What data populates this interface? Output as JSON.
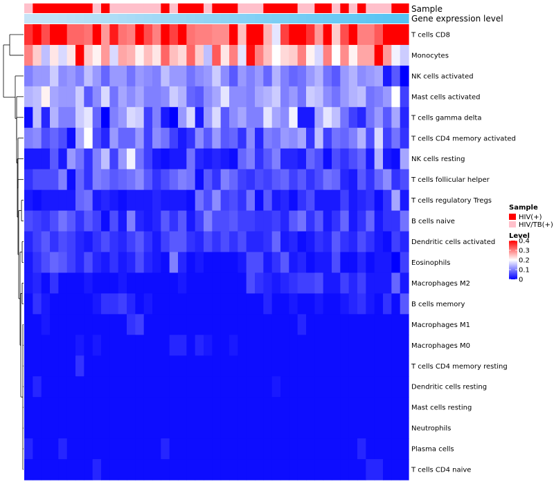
{
  "chart_data": {
    "type": "heatmap",
    "title": "",
    "rows": [
      "T cells CD8",
      "Monocytes",
      "NK cells activated",
      "Mast cells activated",
      "T cells gamma delta",
      "T cells CD4 memory activated",
      "NK cells resting",
      "T cells follicular helper",
      "T cells regulatory  Tregs",
      "B cells naive",
      "Dendritic cells activated",
      "Eosinophils",
      "Macrophages M2",
      "B cells memory",
      "Macrophages M1",
      "Macrophages M0",
      "T cells CD4 memory resting",
      "Dendritic cells resting",
      "Mast cells resting",
      "Neutrophils",
      "Plasma cells",
      "T cells CD4 naive"
    ],
    "columns": 45,
    "sample_groups": [
      1,
      0,
      0,
      0,
      0,
      0,
      0,
      0,
      1,
      0,
      1,
      1,
      1,
      1,
      1,
      1,
      0,
      1,
      0,
      0,
      0,
      1,
      0,
      0,
      0,
      1,
      1,
      1,
      0,
      0,
      0,
      0,
      1,
      1,
      0,
      0,
      1,
      0,
      1,
      0,
      1,
      1,
      1,
      0,
      0
    ],
    "values": [
      [
        0.36,
        0.4,
        0.34,
        0.4,
        0.4,
        0.32,
        0.32,
        0.31,
        0.4,
        0.28,
        0.38,
        0.31,
        0.3,
        0.4,
        0.34,
        0.3,
        0.4,
        0.35,
        0.4,
        0.31,
        0.3,
        0.3,
        0.29,
        0.29,
        0.4,
        0.25,
        0.4,
        0.4,
        0.26,
        0.18,
        0.35,
        0.4,
        0.4,
        0.36,
        0.28,
        0.4,
        0.24,
        0.34,
        0.4,
        0.3,
        0.3,
        0.33,
        0.4,
        0.4,
        0.4
      ],
      [
        0.3,
        0.24,
        0.15,
        0.22,
        0.17,
        0.22,
        0.4,
        0.24,
        0.21,
        0.28,
        0.17,
        0.27,
        0.26,
        0.21,
        0.25,
        0.22,
        0.32,
        0.25,
        0.23,
        0.32,
        0.24,
        0.15,
        0.33,
        0.22,
        0.3,
        0.18,
        0.39,
        0.3,
        0.25,
        0.2,
        0.23,
        0.24,
        0.3,
        0.21,
        0.17,
        0.3,
        0.2,
        0.29,
        0.21,
        0.27,
        0.27,
        0.4,
        0.28,
        0.19,
        0.16
      ],
      [
        0.1,
        0.12,
        0.12,
        0.16,
        0.11,
        0.12,
        0.1,
        0.15,
        0.12,
        0.08,
        0.12,
        0.12,
        0.09,
        0.12,
        0.11,
        0.1,
        0.15,
        0.12,
        0.12,
        0.09,
        0.11,
        0.12,
        0.16,
        0.11,
        0.07,
        0.12,
        0.1,
        0.12,
        0.08,
        0.14,
        0.1,
        0.08,
        0.09,
        0.12,
        0.14,
        0.09,
        0.07,
        0.12,
        0.14,
        0.11,
        0.12,
        0.13,
        0.02,
        0.07,
        0.0
      ],
      [
        0.14,
        0.15,
        0.21,
        0.13,
        0.12,
        0.12,
        0.16,
        0.07,
        0.11,
        0.17,
        0.09,
        0.13,
        0.11,
        0.13,
        0.1,
        0.1,
        0.11,
        0.16,
        0.14,
        0.08,
        0.07,
        0.11,
        0.13,
        0.18,
        0.11,
        0.11,
        0.1,
        0.13,
        0.14,
        0.16,
        0.1,
        0.12,
        0.09,
        0.16,
        0.15,
        0.11,
        0.09,
        0.12,
        0.14,
        0.15,
        0.09,
        0.1,
        0.12,
        0.2,
        0.05
      ],
      [
        0.01,
        0.15,
        0.03,
        0.14,
        0.1,
        0.1,
        0.16,
        0.18,
        0.08,
        0.0,
        0.1,
        0.12,
        0.17,
        0.16,
        0.05,
        0.1,
        0.02,
        0.0,
        0.12,
        0.17,
        0.02,
        0.12,
        0.17,
        0.07,
        0.11,
        0.13,
        0.1,
        0.1,
        0.18,
        0.13,
        0.11,
        0.19,
        0.02,
        0.02,
        0.13,
        0.18,
        0.15,
        0.09,
        0.05,
        0.03,
        0.09,
        0.12,
        0.07,
        0.13,
        0.03
      ],
      [
        0.1,
        0.11,
        0.06,
        0.08,
        0.06,
        0.01,
        0.13,
        0.2,
        0.06,
        0.03,
        0.12,
        0.08,
        0.08,
        0.12,
        0.05,
        0.11,
        0.09,
        0.05,
        0.02,
        0.04,
        0.11,
        0.07,
        0.12,
        0.07,
        0.08,
        0.04,
        0.11,
        0.03,
        0.1,
        0.09,
        0.12,
        0.11,
        0.13,
        0.04,
        0.15,
        0.05,
        0.09,
        0.08,
        0.1,
        0.14,
        0.06,
        0.17,
        0.05,
        0.09,
        0.04
      ],
      [
        0.02,
        0.02,
        0.02,
        0.07,
        0.02,
        0.12,
        0.09,
        0.04,
        0.1,
        0.15,
        0.05,
        0.12,
        0.19,
        0.09,
        0.05,
        0.02,
        0.01,
        0.02,
        0.02,
        0.09,
        0.03,
        0.02,
        0.03,
        0.02,
        0.01,
        0.08,
        0.1,
        0.04,
        0.07,
        0.1,
        0.03,
        0.03,
        0.02,
        0.08,
        0.06,
        0.01,
        0.06,
        0.04,
        0.06,
        0.08,
        0.02,
        0.14,
        0.02,
        0.01,
        0.13
      ],
      [
        0.04,
        0.06,
        0.06,
        0.06,
        0.1,
        0.01,
        0.08,
        0.04,
        0.1,
        0.09,
        0.07,
        0.08,
        0.09,
        0.11,
        0.07,
        0.04,
        0.06,
        0.08,
        0.1,
        0.09,
        0.01,
        0.07,
        0.04,
        0.1,
        0.08,
        0.05,
        0.04,
        0.06,
        0.05,
        0.07,
        0.08,
        0.05,
        0.07,
        0.04,
        0.06,
        0.09,
        0.08,
        0.03,
        0.02,
        0.07,
        0.04,
        0.08,
        0.11,
        0.04,
        0.06
      ],
      [
        0.02,
        0.01,
        0.02,
        0.02,
        0.02,
        0.02,
        0.08,
        0.09,
        0.02,
        0.03,
        0.02,
        0.01,
        0.02,
        0.02,
        0.02,
        0.03,
        0.02,
        0.02,
        0.02,
        0.01,
        0.09,
        0.06,
        0.11,
        0.05,
        0.06,
        0.04,
        0.09,
        0.01,
        0.07,
        0.02,
        0.03,
        0.01,
        0.04,
        0.06,
        0.02,
        0.02,
        0.02,
        0.05,
        0.02,
        0.03,
        0.04,
        0.01,
        0.04,
        0.13,
        0.02
      ],
      [
        0.06,
        0.05,
        0.04,
        0.06,
        0.09,
        0.07,
        0.04,
        0.07,
        0.05,
        0.01,
        0.06,
        0.02,
        0.1,
        0.03,
        0.02,
        0.03,
        0.07,
        0.04,
        0.07,
        0.02,
        0.05,
        0.1,
        0.06,
        0.06,
        0.07,
        0.05,
        0.05,
        0.04,
        0.04,
        0.05,
        0.03,
        0.07,
        0.09,
        0.04,
        0.07,
        0.02,
        0.04,
        0.08,
        0.02,
        0.04,
        0.08,
        0.02,
        0.04,
        0.04,
        0.09
      ],
      [
        0.03,
        0.05,
        0.07,
        0.04,
        0.06,
        0.05,
        0.03,
        0.02,
        0.04,
        0.06,
        0.04,
        0.03,
        0.05,
        0.07,
        0.04,
        0.02,
        0.05,
        0.07,
        0.07,
        0.04,
        0.03,
        0.06,
        0.04,
        0.06,
        0.04,
        0.06,
        0.03,
        0.03,
        0.04,
        0.08,
        0.02,
        0.03,
        0.01,
        0.02,
        0.04,
        0.03,
        0.07,
        0.04,
        0.03,
        0.06,
        0.04,
        0.02,
        0.01,
        0.05,
        0.03
      ],
      [
        0.02,
        0.04,
        0.06,
        0.08,
        0.07,
        0.05,
        0.03,
        0.06,
        0.03,
        0.02,
        0.04,
        0.02,
        0.03,
        0.06,
        0.03,
        0.02,
        0.01,
        0.1,
        0.03,
        0.01,
        0.02,
        0.01,
        0.01,
        0.01,
        0.01,
        0.02,
        0.06,
        0.06,
        0.02,
        0.04,
        0.07,
        0.02,
        0.03,
        0.01,
        0.02,
        0.02,
        0.06,
        0.01,
        0.01,
        0.03,
        0.01,
        0.02,
        0.02,
        0.0,
        0.05
      ],
      [
        0.02,
        0.03,
        0.01,
        0.04,
        0.01,
        0.01,
        0.01,
        0.02,
        0.01,
        0.01,
        0.01,
        0.02,
        0.01,
        0.01,
        0.01,
        0.01,
        0.01,
        0.01,
        0.02,
        0.01,
        0.01,
        0.01,
        0.01,
        0.01,
        0.01,
        0.01,
        0.06,
        0.04,
        0.03,
        0.02,
        0.03,
        0.04,
        0.05,
        0.05,
        0.06,
        0.02,
        0.02,
        0.05,
        0.03,
        0.05,
        0.02,
        0.02,
        0.02,
        0.08,
        0.02
      ],
      [
        0.01,
        0.04,
        0.02,
        0.01,
        0.01,
        0.01,
        0.01,
        0.01,
        0.02,
        0.04,
        0.04,
        0.05,
        0.03,
        0.01,
        0.02,
        0.01,
        0.01,
        0.01,
        0.01,
        0.01,
        0.01,
        0.01,
        0.01,
        0.01,
        0.01,
        0.01,
        0.01,
        0.01,
        0.03,
        0.01,
        0.01,
        0.02,
        0.01,
        0.01,
        0.02,
        0.01,
        0.01,
        0.02,
        0.03,
        0.04,
        0.02,
        0.01,
        0.04,
        0.01,
        0.07
      ],
      [
        0.01,
        0.01,
        0.02,
        0.01,
        0.01,
        0.01,
        0.01,
        0.01,
        0.01,
        0.01,
        0.01,
        0.01,
        0.04,
        0.05,
        0.01,
        0.01,
        0.01,
        0.01,
        0.01,
        0.01,
        0.01,
        0.01,
        0.01,
        0.01,
        0.01,
        0.01,
        0.01,
        0.01,
        0.01,
        0.01,
        0.01,
        0.01,
        0.03,
        0.01,
        0.01,
        0.01,
        0.01,
        0.01,
        0.01,
        0.01,
        0.01,
        0.01,
        0.01,
        0.01,
        0.01
      ],
      [
        0.01,
        0.01,
        0.01,
        0.01,
        0.01,
        0.01,
        0.02,
        0.01,
        0.02,
        0.01,
        0.01,
        0.01,
        0.01,
        0.01,
        0.01,
        0.01,
        0.01,
        0.03,
        0.03,
        0.01,
        0.03,
        0.02,
        0.01,
        0.01,
        0.02,
        0.01,
        0.01,
        0.01,
        0.01,
        0.01,
        0.01,
        0.01,
        0.01,
        0.01,
        0.01,
        0.01,
        0.01,
        0.01,
        0.01,
        0.01,
        0.01,
        0.01,
        0.01,
        0.01,
        0.01
      ],
      [
        0.01,
        0.01,
        0.01,
        0.01,
        0.01,
        0.01,
        0.04,
        0.01,
        0.01,
        0.01,
        0.01,
        0.01,
        0.01,
        0.01,
        0.01,
        0.01,
        0.01,
        0.01,
        0.01,
        0.01,
        0.01,
        0.01,
        0.01,
        0.01,
        0.01,
        0.01,
        0.01,
        0.01,
        0.01,
        0.01,
        0.01,
        0.01,
        0.01,
        0.01,
        0.01,
        0.01,
        0.01,
        0.01,
        0.01,
        0.01,
        0.01,
        0.01,
        0.01,
        0.01,
        0.01
      ],
      [
        0.01,
        0.03,
        0.01,
        0.01,
        0.01,
        0.01,
        0.01,
        0.01,
        0.01,
        0.01,
        0.01,
        0.01,
        0.01,
        0.01,
        0.01,
        0.01,
        0.01,
        0.01,
        0.01,
        0.01,
        0.01,
        0.01,
        0.01,
        0.01,
        0.01,
        0.01,
        0.01,
        0.01,
        0.01,
        0.02,
        0.01,
        0.01,
        0.01,
        0.01,
        0.01,
        0.01,
        0.01,
        0.01,
        0.01,
        0.01,
        0.01,
        0.01,
        0.01,
        0.01,
        0.01
      ],
      [
        0.01,
        0.01,
        0.01,
        0.01,
        0.01,
        0.01,
        0.01,
        0.01,
        0.01,
        0.01,
        0.01,
        0.01,
        0.01,
        0.01,
        0.01,
        0.01,
        0.01,
        0.01,
        0.01,
        0.01,
        0.01,
        0.01,
        0.01,
        0.01,
        0.01,
        0.01,
        0.01,
        0.01,
        0.01,
        0.01,
        0.01,
        0.01,
        0.01,
        0.01,
        0.01,
        0.01,
        0.01,
        0.01,
        0.01,
        0.01,
        0.01,
        0.01,
        0.01,
        0.01,
        0.01
      ],
      [
        0.01,
        0.01,
        0.01,
        0.01,
        0.01,
        0.01,
        0.01,
        0.01,
        0.01,
        0.01,
        0.01,
        0.01,
        0.01,
        0.01,
        0.01,
        0.01,
        0.01,
        0.01,
        0.01,
        0.01,
        0.01,
        0.01,
        0.01,
        0.01,
        0.01,
        0.01,
        0.01,
        0.01,
        0.01,
        0.01,
        0.01,
        0.01,
        0.01,
        0.01,
        0.01,
        0.01,
        0.01,
        0.01,
        0.01,
        0.01,
        0.01,
        0.01,
        0.01,
        0.01,
        0.01
      ],
      [
        0.03,
        0.01,
        0.01,
        0.01,
        0.03,
        0.01,
        0.01,
        0.01,
        0.01,
        0.01,
        0.01,
        0.01,
        0.01,
        0.01,
        0.01,
        0.01,
        0.03,
        0.01,
        0.01,
        0.01,
        0.01,
        0.01,
        0.01,
        0.01,
        0.01,
        0.01,
        0.01,
        0.01,
        0.01,
        0.01,
        0.01,
        0.01,
        0.01,
        0.01,
        0.01,
        0.01,
        0.01,
        0.01,
        0.01,
        0.03,
        0.01,
        0.01,
        0.01,
        0.01,
        0.01
      ],
      [
        0.01,
        0.01,
        0.01,
        0.01,
        0.01,
        0.01,
        0.01,
        0.01,
        0.03,
        0.01,
        0.01,
        0.01,
        0.01,
        0.01,
        0.01,
        0.01,
        0.01,
        0.01,
        0.01,
        0.01,
        0.01,
        0.01,
        0.01,
        0.01,
        0.01,
        0.01,
        0.01,
        0.01,
        0.01,
        0.01,
        0.01,
        0.01,
        0.01,
        0.01,
        0.01,
        0.01,
        0.01,
        0.01,
        0.01,
        0.01,
        0.03,
        0.03,
        0.01,
        0.01,
        0.01
      ]
    ],
    "color_scale": {
      "min": 0,
      "max": 0.4,
      "low": "#0000ff",
      "mid": "#ffffff",
      "high": "#ff0000",
      "mid_value": 0.2
    },
    "annotation_tracks": [
      {
        "label": "Sample"
      },
      {
        "label": "Gene expression level",
        "colors": [
          "#c8e4f7",
          "#55c3f3"
        ]
      }
    ],
    "legend": {
      "sample_title": "Sample",
      "sample_items": [
        {
          "label": "HIV(+)",
          "color": "#ff0000"
        },
        {
          "label": "HIV/TB(+)",
          "color": "#ffc0cb"
        }
      ],
      "level_title": "Level",
      "level_ticks": [
        {
          "label": "0.4",
          "value": 0.4
        },
        {
          "label": "0.3",
          "value": 0.3
        },
        {
          "label": "0.2",
          "value": 0.2
        },
        {
          "label": "0.1",
          "value": 0.1
        },
        {
          "label": "0",
          "value": 0.0
        }
      ]
    }
  }
}
